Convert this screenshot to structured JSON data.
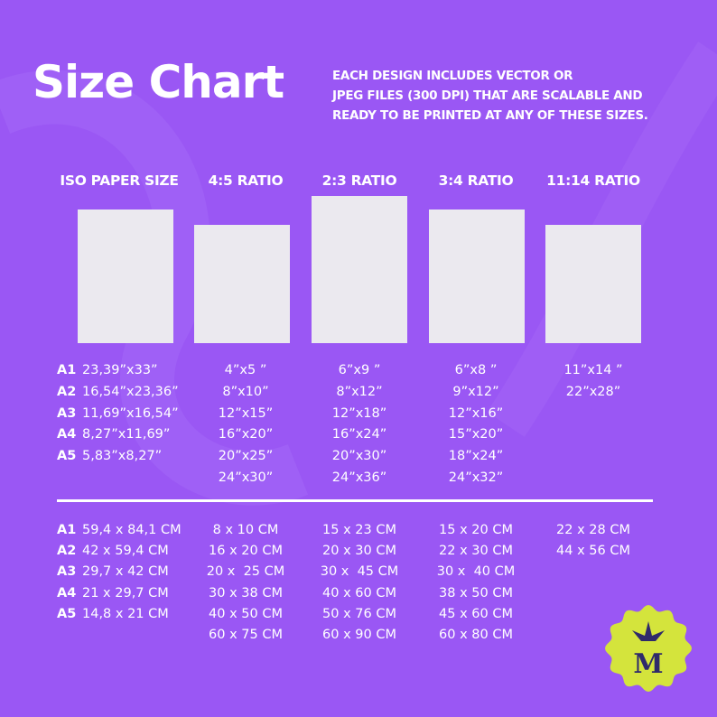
{
  "title": "Size Chart",
  "description": [
    "EACH DESIGN INCLUDES VECTOR OR",
    "JPEG FILES (300 DPI) THAT ARE SCALABLE AND",
    "READY TO BE PRINTED AT ANY OF THESE SIZES."
  ],
  "columns": [
    {
      "header": "ISO PAPER SIZE",
      "inches": [
        {
          "size": "A1",
          "dimension": "23,39”x33”"
        },
        {
          "size": "A2",
          "dimension": "16,54”x23,36”"
        },
        {
          "size": "A3",
          "dimension": "11,69”x16,54”"
        },
        {
          "size": "A4",
          "dimension": "8,27”x11,69”"
        },
        {
          "size": "A5",
          "dimension": "5,83”x8,27”"
        }
      ],
      "cm": [
        {
          "size": "A1",
          "dimension": "59,4 x 84,1 CM"
        },
        {
          "size": "A2",
          "dimension": "42 x 59,4 CM"
        },
        {
          "size": "A3",
          "dimension": "29,7 x 42 CM"
        },
        {
          "size": "A4",
          "dimension": "21 x 29,7 CM"
        },
        {
          "size": "A5",
          "dimension": "14,8 x 21 CM"
        }
      ]
    },
    {
      "header": "4:5 RATIO",
      "inches": [
        "4”x5 ”",
        "8”x10”",
        "12”x15”",
        "16”x20”",
        "20”x25”",
        "24”x30”"
      ],
      "cm": [
        "8 x 10 CM",
        "16 x 20 CM",
        "20 x  25 CM",
        "30 x 38 CM",
        "40 x 50 CM",
        "60 x 75 CM"
      ]
    },
    {
      "header": "2:3 RATIO",
      "inches": [
        "6”x9 ”",
        "8”x12”",
        "12”x18”",
        "16”x24”",
        "20”x30”",
        "24”x36”"
      ],
      "cm": [
        "15 x 23 CM",
        "20 x 30 CM",
        "30 x  45 CM",
        "40 x 60 CM",
        "50 x 76 CM",
        "60 x 90 CM"
      ]
    },
    {
      "header": "3:4 RATIO",
      "inches": [
        "6”x8 ”",
        "9”x12”",
        "12”x16”",
        "15”x20”",
        "18”x24”",
        "24”x32”"
      ],
      "cm": [
        "15 x 20 CM",
        "22 x 30 CM",
        "30 x  40 CM",
        "38 x 50 CM",
        "45 x 60 CM",
        "60 x 80 CM"
      ]
    },
    {
      "header": "11:14 RATIO",
      "inches": [
        "11”x14 ”",
        "22”x28”"
      ],
      "cm": [
        "22 x 28 CM",
        "44 x 56 CM"
      ]
    }
  ],
  "logo": "M"
}
